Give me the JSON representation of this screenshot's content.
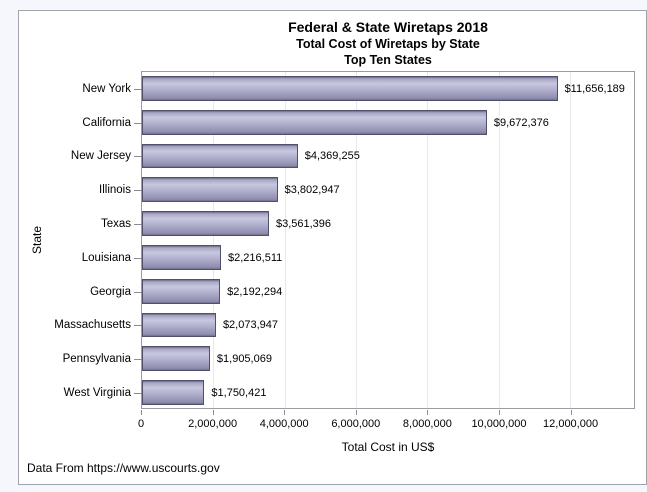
{
  "chart_data": {
    "type": "bar",
    "orientation": "horizontal",
    "title": "Federal & State Wiretaps 2018",
    "subtitle": [
      "Total Cost of Wiretaps by State",
      "Top Ten States"
    ],
    "xlabel": "Total Cost in US$",
    "ylabel": "State",
    "footnote": "Data From https://www.uscourts.gov",
    "categories": [
      "New York",
      "California",
      "New Jersey",
      "Illinois",
      "Texas",
      "Louisiana",
      "Georgia",
      "Massachusetts",
      "Pennsylvania",
      "West Virginia"
    ],
    "values": [
      11656189,
      9672376,
      4369255,
      3802947,
      3561396,
      2216511,
      2192294,
      2073947,
      1905069,
      1750421
    ],
    "value_labels": [
      "$11,656,189",
      "$9,672,376",
      "$4,369,255",
      "$3,802,947",
      "$3,561,396",
      "$2,216,511",
      "$2,192,294",
      "$2,073,947",
      "$1,905,069",
      "$1,750,421"
    ],
    "xlim": [
      0,
      13800000
    ],
    "xticks": [
      0,
      2000000,
      4000000,
      6000000,
      8000000,
      10000000,
      12000000
    ],
    "xtick_labels": [
      "0",
      "2,000,000",
      "4,000,000",
      "6,000,000",
      "8,000,000",
      "10,000,000",
      "12,000,000"
    ],
    "grid": "vertical",
    "legend": "none",
    "bar_color": "#b6b5d1",
    "bar_border_color": "#50506a"
  }
}
